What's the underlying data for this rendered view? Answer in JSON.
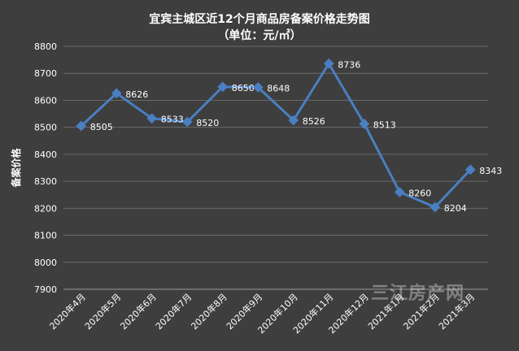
{
  "chart_data": {
    "type": "line",
    "title": "宜宾主城区近12个月商品房备案价格走势图",
    "subtitle": "（单位：元/㎡）",
    "xlabel": "",
    "ylabel": "备案价格",
    "categories": [
      "2020年4月",
      "2020年5月",
      "2020年6月",
      "2020年7月",
      "2020年8月",
      "2020年9月",
      "2020年10月",
      "2020年11月",
      "2020年12月",
      "2021年1月",
      "2021年2月",
      "2021年3月"
    ],
    "series": [
      {
        "values": [
          8505,
          8626,
          8533,
          8520,
          8650,
          8648,
          8526,
          8736,
          8513,
          8260,
          8204,
          8343
        ]
      }
    ],
    "ylim": [
      7900,
      8800
    ],
    "yticks": [
      7900,
      8000,
      8100,
      8200,
      8300,
      8400,
      8500,
      8600,
      8700,
      8800
    ],
    "grid": true,
    "legend": "none",
    "line_color": "#4a7fc1",
    "background_color": "#3e3e3e",
    "grid_color": "#6a6a6a",
    "text_color": "#ffffff"
  },
  "watermark": "三江房产网"
}
